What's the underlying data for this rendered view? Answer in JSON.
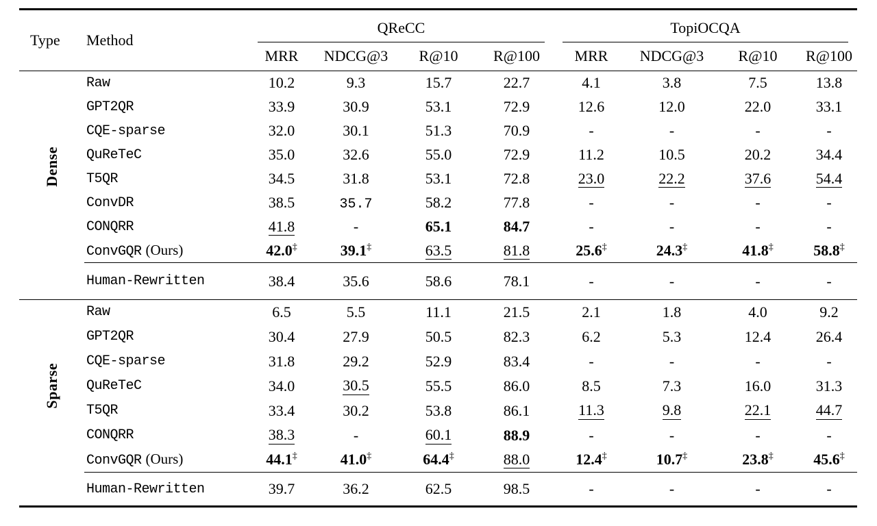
{
  "table": {
    "header": {
      "type_label": "Type",
      "method_label": "Method",
      "groups": [
        {
          "label": "QReCC",
          "columns": [
            "MRR",
            "NDCG@3",
            "R@10",
            "R@100"
          ]
        },
        {
          "label": "TopiOCQA",
          "columns": [
            "MRR",
            "NDCG@3",
            "R@10",
            "R@100"
          ]
        }
      ]
    },
    "dagger_symbol": "‡",
    "sections": [
      {
        "label": "Dense",
        "rows": [
          {
            "method": "Raw",
            "cells": [
              {
                "v": "10.2"
              },
              {
                "v": "9.3"
              },
              {
                "v": "15.7"
              },
              {
                "v": "22.7"
              },
              {
                "v": "4.1"
              },
              {
                "v": "3.8"
              },
              {
                "v": "7.5"
              },
              {
                "v": "13.8"
              }
            ]
          },
          {
            "method": "GPT2QR",
            "cells": [
              {
                "v": "33.9"
              },
              {
                "v": "30.9"
              },
              {
                "v": "53.1"
              },
              {
                "v": "72.9"
              },
              {
                "v": "12.6"
              },
              {
                "v": "12.0"
              },
              {
                "v": "22.0"
              },
              {
                "v": "33.1"
              }
            ]
          },
          {
            "method": "CQE-sparse",
            "cells": [
              {
                "v": "32.0"
              },
              {
                "v": "30.1"
              },
              {
                "v": "51.3"
              },
              {
                "v": "70.9"
              },
              {
                "v": "-"
              },
              {
                "v": "-"
              },
              {
                "v": "-"
              },
              {
                "v": "-"
              }
            ]
          },
          {
            "method": "QuReTeC",
            "cells": [
              {
                "v": "35.0"
              },
              {
                "v": "32.6"
              },
              {
                "v": "55.0"
              },
              {
                "v": "72.9"
              },
              {
                "v": "11.2"
              },
              {
                "v": "10.5"
              },
              {
                "v": "20.2"
              },
              {
                "v": "34.4"
              }
            ]
          },
          {
            "method": "T5QR",
            "cells": [
              {
                "v": "34.5"
              },
              {
                "v": "31.8"
              },
              {
                "v": "53.1"
              },
              {
                "v": "72.8"
              },
              {
                "v": "23.0",
                "u": true
              },
              {
                "v": "22.2",
                "u": true
              },
              {
                "v": "37.6",
                "u": true
              },
              {
                "v": "54.4",
                "u": true
              }
            ]
          },
          {
            "method": "ConvDR",
            "cells": [
              {
                "v": "38.5"
              },
              {
                "v": "35.7",
                "m": true
              },
              {
                "v": "58.2"
              },
              {
                "v": "77.8"
              },
              {
                "v": "-"
              },
              {
                "v": "-"
              },
              {
                "v": "-"
              },
              {
                "v": "-"
              }
            ]
          },
          {
            "method": "CONQRR",
            "cells": [
              {
                "v": "41.8",
                "u": true
              },
              {
                "v": "-"
              },
              {
                "v": "65.1",
                "b": true
              },
              {
                "v": "84.7",
                "b": true
              },
              {
                "v": "-"
              },
              {
                "v": "-"
              },
              {
                "v": "-"
              },
              {
                "v": "-"
              }
            ]
          },
          {
            "method": "ConvGQR",
            "suffix": "(Ours)",
            "cells": [
              {
                "v": "42.0",
                "b": true,
                "d": true
              },
              {
                "v": "39.1",
                "b": true,
                "d": true
              },
              {
                "v": "63.5",
                "u": true
              },
              {
                "v": "81.8",
                "u": true
              },
              {
                "v": "25.6",
                "b": true,
                "d": true
              },
              {
                "v": "24.3",
                "b": true,
                "d": true
              },
              {
                "v": "41.8",
                "b": true,
                "d": true
              },
              {
                "v": "58.8",
                "b": true,
                "d": true
              }
            ]
          }
        ],
        "footer": {
          "method": "Human-Rewritten",
          "cells": [
            {
              "v": "38.4"
            },
            {
              "v": "35.6"
            },
            {
              "v": "58.6"
            },
            {
              "v": "78.1"
            },
            {
              "v": "-"
            },
            {
              "v": "-"
            },
            {
              "v": "-"
            },
            {
              "v": "-"
            }
          ]
        }
      },
      {
        "label": "Sparse",
        "rows": [
          {
            "method": "Raw",
            "cells": [
              {
                "v": "6.5"
              },
              {
                "v": "5.5"
              },
              {
                "v": "11.1"
              },
              {
                "v": "21.5"
              },
              {
                "v": "2.1"
              },
              {
                "v": "1.8"
              },
              {
                "v": "4.0"
              },
              {
                "v": "9.2"
              }
            ]
          },
          {
            "method": "GPT2QR",
            "cells": [
              {
                "v": "30.4"
              },
              {
                "v": "27.9"
              },
              {
                "v": "50.5"
              },
              {
                "v": "82.3"
              },
              {
                "v": "6.2"
              },
              {
                "v": "5.3"
              },
              {
                "v": "12.4"
              },
              {
                "v": "26.4"
              }
            ]
          },
          {
            "method": "CQE-sparse",
            "cells": [
              {
                "v": "31.8"
              },
              {
                "v": "29.2"
              },
              {
                "v": "52.9"
              },
              {
                "v": "83.4"
              },
              {
                "v": "-"
              },
              {
                "v": "-"
              },
              {
                "v": "-"
              },
              {
                "v": "-"
              }
            ]
          },
          {
            "method": "QuReTeC",
            "cells": [
              {
                "v": "34.0"
              },
              {
                "v": "30.5",
                "u": true
              },
              {
                "v": "55.5"
              },
              {
                "v": "86.0"
              },
              {
                "v": "8.5"
              },
              {
                "v": "7.3"
              },
              {
                "v": "16.0"
              },
              {
                "v": "31.3"
              }
            ]
          },
          {
            "method": "T5QR",
            "cells": [
              {
                "v": "33.4"
              },
              {
                "v": "30.2"
              },
              {
                "v": "53.8"
              },
              {
                "v": "86.1"
              },
              {
                "v": "11.3",
                "u": true
              },
              {
                "v": "9.8",
                "u": true
              },
              {
                "v": "22.1",
                "u": true
              },
              {
                "v": "44.7",
                "u": true
              }
            ]
          },
          {
            "method": "CONQRR",
            "cells": [
              {
                "v": "38.3",
                "u": true
              },
              {
                "v": "-"
              },
              {
                "v": "60.1",
                "u": true
              },
              {
                "v": "88.9",
                "b": true
              },
              {
                "v": "-"
              },
              {
                "v": "-"
              },
              {
                "v": "-"
              },
              {
                "v": "-"
              }
            ]
          },
          {
            "method": "ConvGQR",
            "suffix": "(Ours)",
            "cells": [
              {
                "v": "44.1",
                "b": true,
                "d": true
              },
              {
                "v": "41.0",
                "b": true,
                "d": true
              },
              {
                "v": "64.4",
                "b": true,
                "d": true
              },
              {
                "v": "88.0",
                "u": true
              },
              {
                "v": "12.4",
                "b": true,
                "d": true
              },
              {
                "v": "10.7",
                "b": true,
                "d": true
              },
              {
                "v": "23.8",
                "b": true,
                "d": true
              },
              {
                "v": "45.6",
                "b": true,
                "d": true
              }
            ]
          }
        ],
        "footer": {
          "method": "Human-Rewritten",
          "cells": [
            {
              "v": "39.7"
            },
            {
              "v": "36.2"
            },
            {
              "v": "62.5"
            },
            {
              "v": "98.5"
            },
            {
              "v": "-"
            },
            {
              "v": "-"
            },
            {
              "v": "-"
            },
            {
              "v": "-"
            }
          ]
        }
      }
    ]
  }
}
